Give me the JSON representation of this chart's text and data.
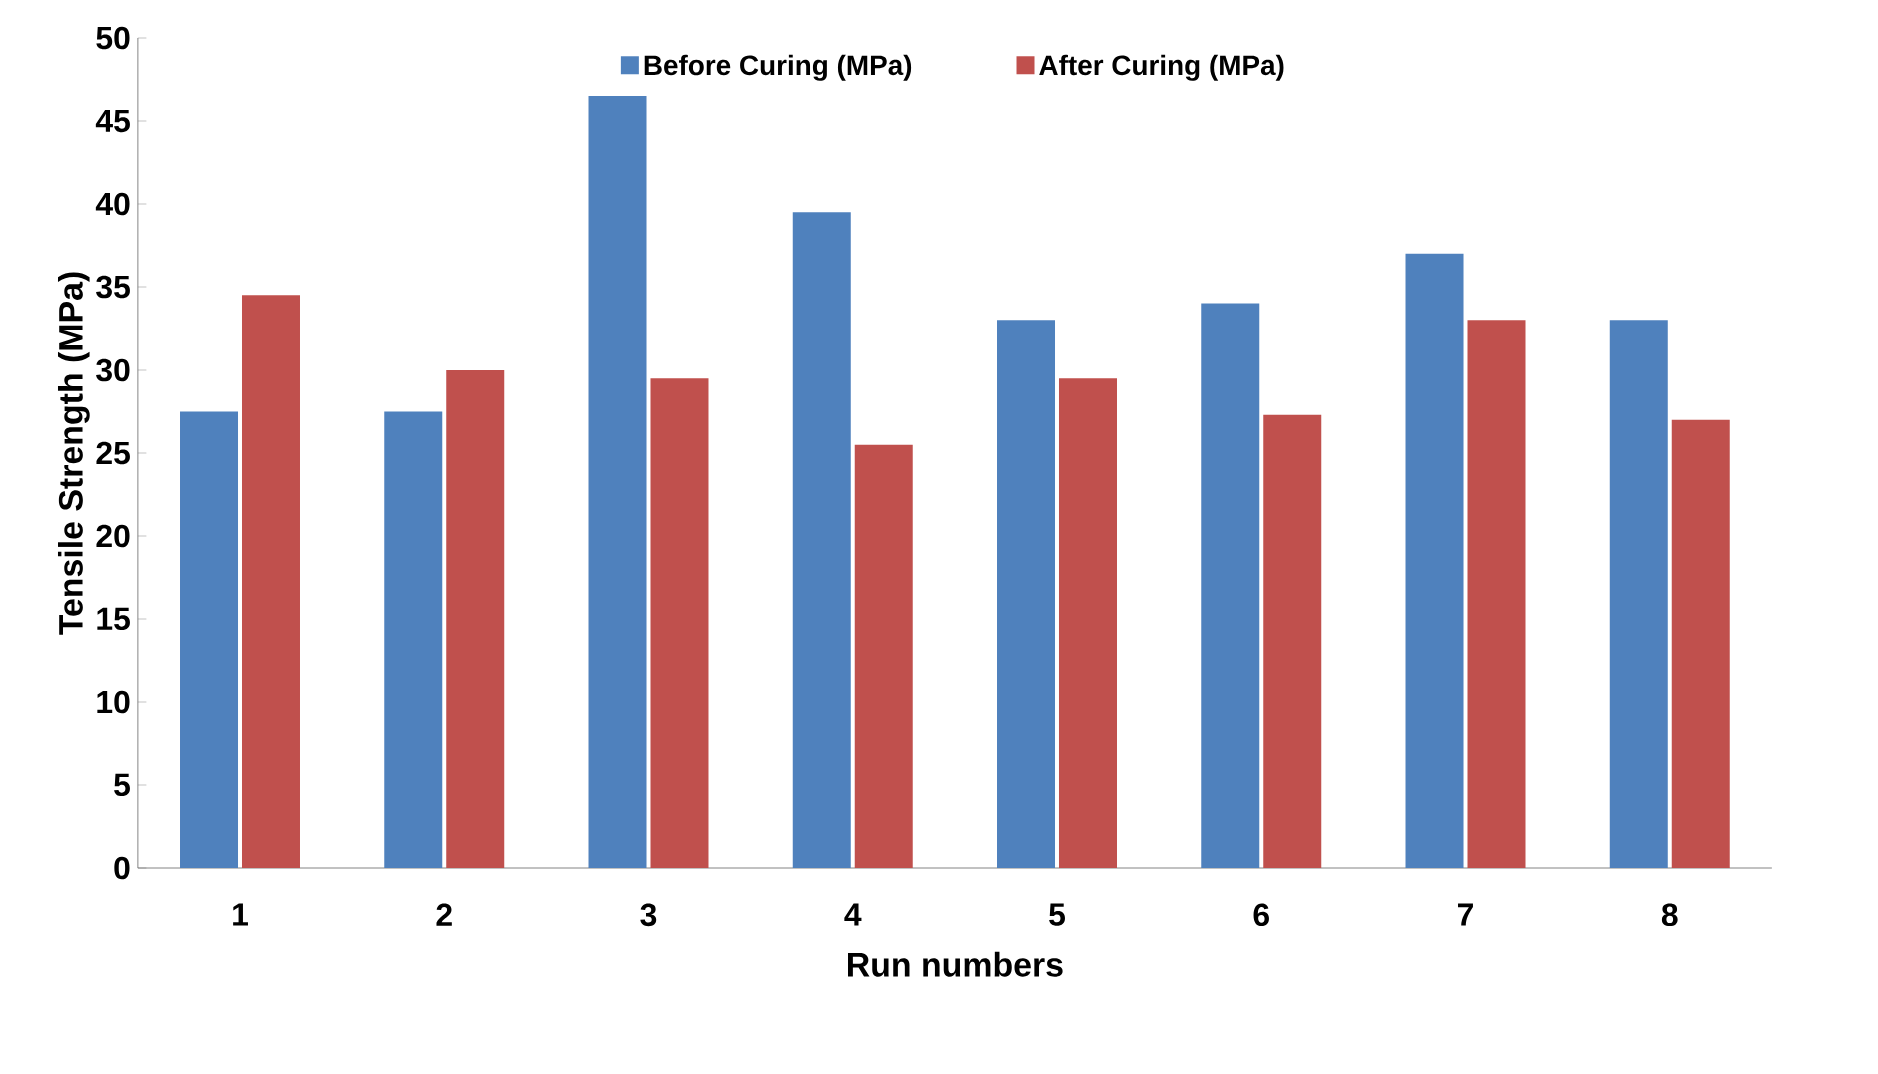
{
  "chart_data": {
    "type": "bar",
    "xlabel": "Run numbers",
    "ylabel": "Tensile Strength (MPa)",
    "categories": [
      "1",
      "2",
      "3",
      "4",
      "5",
      "6",
      "7",
      "8"
    ],
    "series": [
      {
        "name": "Before Curing (MPa)",
        "color": "#4f81bd",
        "values": [
          27.5,
          27.5,
          46.5,
          39.5,
          33,
          34,
          37,
          33
        ]
      },
      {
        "name": "After Curing (MPa)",
        "color": "#c0504d",
        "values": [
          34.5,
          30,
          29.5,
          25.5,
          29.5,
          27.3,
          33,
          27
        ]
      }
    ],
    "ylim": [
      0,
      50
    ],
    "yticks": [
      0,
      5,
      10,
      15,
      20,
      25,
      30,
      35,
      40,
      45,
      50
    ],
    "legend": "top",
    "grid": false
  }
}
